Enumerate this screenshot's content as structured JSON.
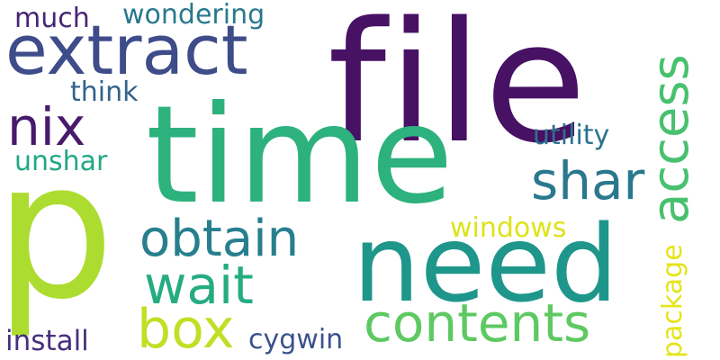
{
  "words": {
    "file": "file",
    "time": "time",
    "p": "p",
    "need": "need",
    "extract": "extract",
    "access": "access",
    "contents": "contents",
    "box": "box",
    "obtain": "obtain",
    "shar": "shar",
    "nix": "nix",
    "wait": "wait",
    "utility": "utility",
    "windows": "windows",
    "package": "package",
    "install": "install",
    "cygwin": "cygwin",
    "unshar": "unshar",
    "think": "think",
    "much": "much",
    "wondering": "wondering"
  },
  "colors": {
    "file": "#471164",
    "time": "#2db27d",
    "p": "#addc30",
    "need": "#1f968b",
    "extract": "#3e4c8a",
    "access": "#48c16e",
    "contents": "#5ec962",
    "box": "#c0df25",
    "obtain": "#277f8e",
    "shar": "#2a788e",
    "nix": "#481a6c",
    "wait": "#25ac82",
    "utility": "#2c728e",
    "windows": "#dde318",
    "package": "#e5e419",
    "install": "#472f7d",
    "cygwin": "#3b528b",
    "unshar": "#22a884",
    "think": "#33638d",
    "much": "#482475",
    "wondering": "#29798e"
  }
}
